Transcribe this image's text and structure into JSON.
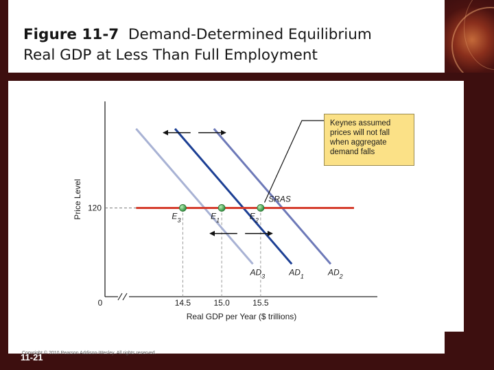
{
  "slide": {
    "title_bold": "Figure 11-7",
    "title_line1_rest": "Demand-Determined Equilibrium",
    "title_line2": "Real GDP at Less Than Full Employment",
    "copyright": "Copyright © 2010 Pearson Addison-Wesley. All rights reserved.",
    "slide_number": "11-21"
  },
  "colors": {
    "background": "#3d0f0f",
    "sras": "#d43a2a",
    "ad1": "#1c3f94",
    "ad2": "#6d79b8",
    "ad3": "#a8b2d4",
    "equilibrium_point": "#3aa84a",
    "callout_fill": "#fbe187"
  },
  "chart_data": {
    "type": "line",
    "title": "",
    "xlabel": "Real GDP per Year ($ trillions)",
    "ylabel": "Price Level",
    "xlim": [
      13.5,
      17.0
    ],
    "ylim": [
      95,
      150
    ],
    "x_ticks": [
      "14.5",
      "15.0",
      "15.5"
    ],
    "x_tick_values": [
      14.5,
      15.0,
      15.5
    ],
    "y_ticks": [
      "120"
    ],
    "y_tick_values": [
      120
    ],
    "origin_label": "0",
    "axis_break": true,
    "grid": false,
    "series": [
      {
        "name": "SRAS",
        "label_main": "SRAS",
        "label_sub": "",
        "color": "#d43a2a",
        "x": [
          13.9,
          16.7
        ],
        "y": [
          120,
          120
        ]
      },
      {
        "name": "AD1",
        "label_main": "AD",
        "label_sub": "1",
        "color": "#1c3f94",
        "x": [
          14.4,
          15.9
        ],
        "y": [
          142.3,
          104.2
        ]
      },
      {
        "name": "AD2",
        "label_main": "AD",
        "label_sub": "2",
        "color": "#6d79b8",
        "x": [
          14.9,
          16.4
        ],
        "y": [
          142.3,
          104.2
        ]
      },
      {
        "name": "AD3",
        "label_main": "AD",
        "label_sub": "3",
        "color": "#a8b2d4",
        "x": [
          13.9,
          15.4
        ],
        "y": [
          142.3,
          104.2
        ]
      }
    ],
    "points": [
      {
        "main": "E",
        "sub": "3",
        "x": 14.5,
        "y": 120
      },
      {
        "main": "E",
        "sub": "1",
        "x": 15.0,
        "y": 120
      },
      {
        "main": "E",
        "sub": "2",
        "x": 15.5,
        "y": 120
      }
    ],
    "shift_arrows": [
      {
        "x_from": 14.6,
        "x_to": 14.25,
        "y": 141.2,
        "direction": "left"
      },
      {
        "x_from": 14.7,
        "x_to": 15.05,
        "y": 141.2,
        "direction": "right"
      },
      {
        "x_from": 15.2,
        "x_to": 14.85,
        "y": 112.8,
        "direction": "left"
      },
      {
        "x_from": 15.3,
        "x_to": 15.65,
        "y": 112.8,
        "direction": "right"
      }
    ],
    "annotation": "Keynes assumed prices will not fall when aggregate demand falls"
  }
}
